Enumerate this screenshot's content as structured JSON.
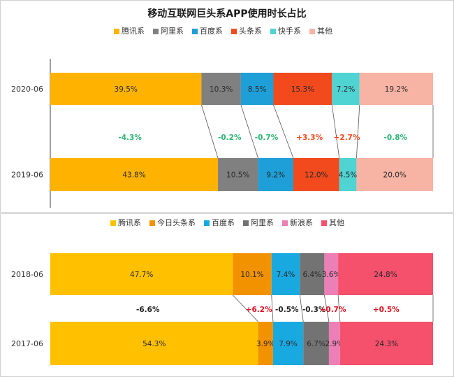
{
  "chart_data": [
    {
      "type": "bar",
      "title": "移动互联网巨头系APP使用时长占比",
      "orientation": "horizontal-stacked-100",
      "categories": [
        "2020-06",
        "2019-06"
      ],
      "series": [
        {
          "name": "腾讯系",
          "color": "#FFB300",
          "values": [
            39.5,
            43.8
          ],
          "labels": [
            "39.5%",
            "43.8%"
          ]
        },
        {
          "name": "阿里系",
          "color": "#808080",
          "values": [
            10.3,
            10.5
          ],
          "labels": [
            "10.3%",
            "10.5%"
          ]
        },
        {
          "name": "百度系",
          "color": "#1E9FD8",
          "values": [
            8.5,
            9.2
          ],
          "labels": [
            "8.5%",
            "9.2%"
          ]
        },
        {
          "name": "头条系",
          "color": "#F24A1D",
          "values": [
            15.3,
            12.0
          ],
          "labels": [
            "15.3%",
            "12.0%"
          ]
        },
        {
          "name": "快手系",
          "color": "#4FD3D3",
          "values": [
            7.2,
            4.5
          ],
          "labels": [
            "7.2%",
            "4.5%"
          ]
        },
        {
          "name": "其他",
          "color": "#F7B3A4",
          "values": [
            19.2,
            20.0
          ],
          "labels": [
            "19.2%",
            "20.0%"
          ]
        }
      ],
      "changes": [
        {
          "label": "-4.3%",
          "color": "#2BB673"
        },
        {
          "label": "-0.2%",
          "color": "#2BB673"
        },
        {
          "label": "-0.7%",
          "color": "#2BB673"
        },
        {
          "label": "+3.3%",
          "color": "#F24A1D"
        },
        {
          "label": "+2.7%",
          "color": "#F24A1D"
        },
        {
          "label": "-0.8%",
          "color": "#2BB673"
        }
      ],
      "legend_position": "top",
      "grid": false
    },
    {
      "type": "bar",
      "title": "",
      "orientation": "horizontal-stacked-100",
      "categories": [
        "2018-06",
        "2017-06"
      ],
      "series": [
        {
          "name": "腾讯系",
          "color": "#FFC000",
          "values": [
            47.7,
            54.3
          ],
          "labels": [
            "47.7%",
            "54.3%"
          ]
        },
        {
          "name": "今日头条系",
          "color": "#F39200",
          "values": [
            10.1,
            3.9
          ],
          "labels": [
            "10.1%",
            "3.9%"
          ]
        },
        {
          "name": "百度系",
          "color": "#19A9E1",
          "values": [
            7.4,
            7.9
          ],
          "labels": [
            "7.4%",
            "7.9%"
          ]
        },
        {
          "name": "阿里系",
          "color": "#737373",
          "values": [
            6.4,
            6.7
          ],
          "labels": [
            "6.4%",
            "6.7%"
          ]
        },
        {
          "name": "新浪系",
          "color": "#EC7FB5",
          "values": [
            3.6,
            2.9
          ],
          "labels": [
            "3.6%",
            "2.9%"
          ]
        },
        {
          "name": "其他",
          "color": "#F5506C",
          "values": [
            24.8,
            24.3
          ],
          "labels": [
            "24.8%",
            "24.3%"
          ]
        }
      ],
      "changes": [
        {
          "label": "-6.6%",
          "color": "#222222"
        },
        {
          "label": "+6.2%",
          "color": "#E01020"
        },
        {
          "label": "-0.5%",
          "color": "#222222"
        },
        {
          "label": "-0.3%",
          "color": "#222222"
        },
        {
          "label": "+0.7%",
          "color": "#E01020"
        },
        {
          "label": "+0.5%",
          "color": "#E01020"
        }
      ],
      "legend_position": "top",
      "grid": false
    }
  ]
}
